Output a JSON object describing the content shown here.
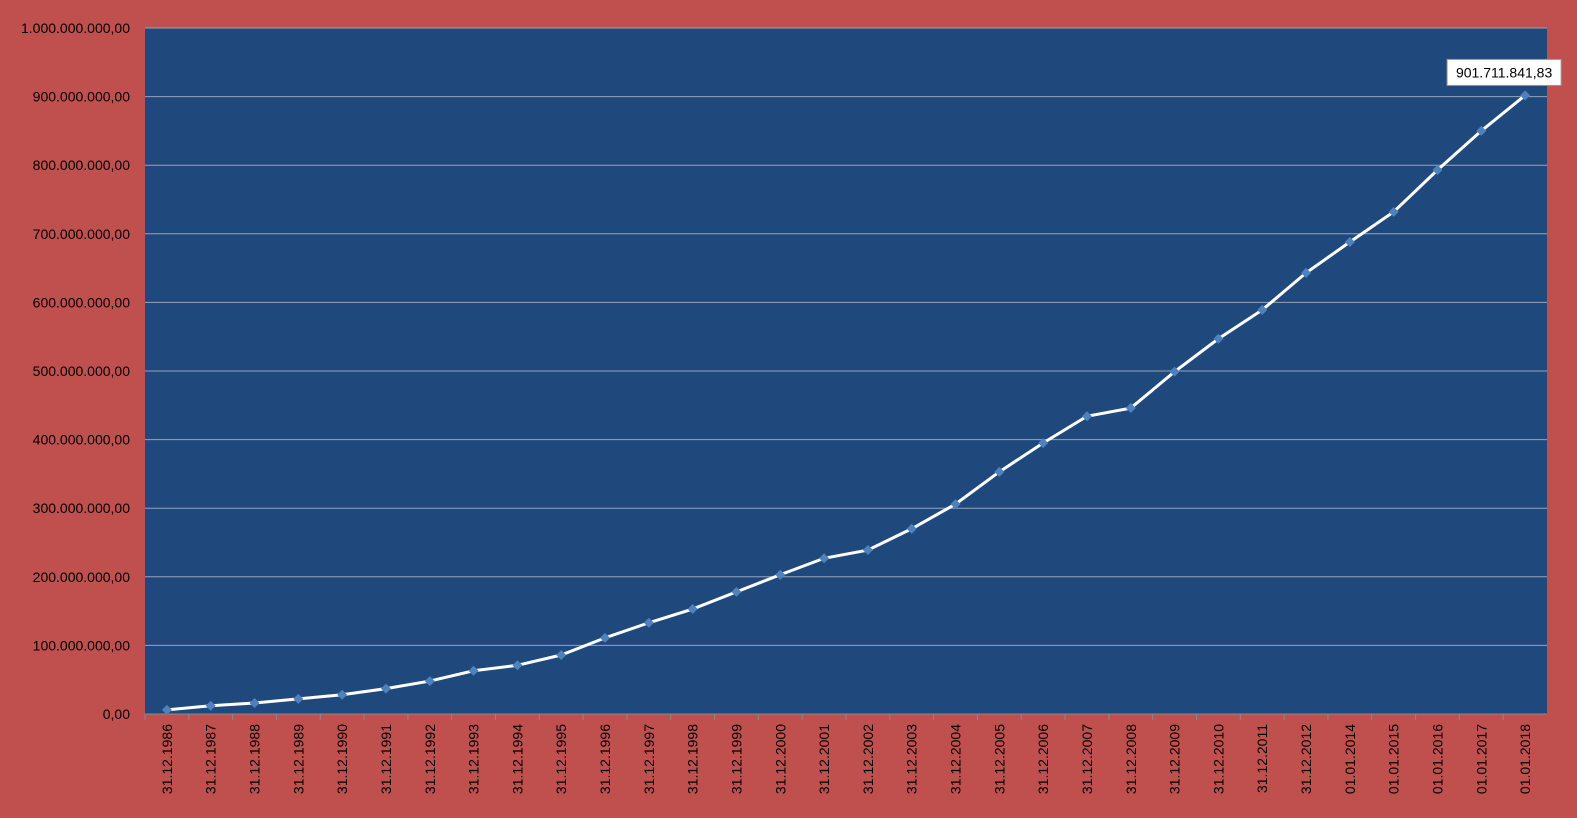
{
  "chart_data": {
    "type": "line",
    "categories": [
      "31.12.1986",
      "31.12.1987",
      "31.12.1988",
      "31.12.1989",
      "31.12.1990",
      "31.12.1991",
      "31.12.1992",
      "31.12.1993",
      "31.12.1994",
      "31.12.1995",
      "31.12.1996",
      "31.12.1997",
      "31.12.1998",
      "31.12.1999",
      "31.12.2000",
      "31.12.2001",
      "31.12.2002",
      "31.12.2003",
      "31.12.2004",
      "31.12.2005",
      "31.12.2006",
      "31.12.2007",
      "31.12.2008",
      "31.12.2009",
      "31.12.2010",
      "31.12.2011",
      "31.12.2012",
      "01.01.2014",
      "01.01.2015",
      "01.01.2016",
      "01.01.2017",
      "01.01.2018"
    ],
    "series": [
      {
        "color": "#ffffff",
        "marker_color": "#4f81bd",
        "values": [
          6000000,
          12000000,
          16000000,
          22000000,
          28000000,
          37000000,
          48000000,
          63000000,
          71000000,
          86000000,
          111000000,
          133000000,
          153000000,
          178000000,
          203000000,
          227000000,
          239000000,
          270000000,
          306000000,
          353000000,
          395000000,
          434000000,
          446000000,
          499000000,
          547000000,
          589000000,
          643000000,
          688000000,
          732000000,
          793000000,
          850000000,
          901711841.83
        ],
        "value_labels": [
          null,
          null,
          null,
          null,
          null,
          null,
          null,
          null,
          null,
          null,
          null,
          null,
          null,
          null,
          null,
          null,
          null,
          null,
          null,
          null,
          null,
          null,
          null,
          null,
          null,
          null,
          null,
          null,
          null,
          null,
          null,
          "901.711.841,83"
        ]
      }
    ],
    "ylim": [
      0,
      1000000000
    ],
    "yticks": [
      {
        "value": 0,
        "label": "0,00"
      },
      {
        "value": 100000000,
        "label": "100.000.000,00"
      },
      {
        "value": 200000000,
        "label": "200.000.000,00"
      },
      {
        "value": 300000000,
        "label": "300.000.000,00"
      },
      {
        "value": 400000000,
        "label": "400.000.000,00"
      },
      {
        "value": 500000000,
        "label": "500.000.000,00"
      },
      {
        "value": 600000000,
        "label": "600.000.000,00"
      },
      {
        "value": 700000000,
        "label": "700.000.000,00"
      },
      {
        "value": 800000000,
        "label": "800.000.000,00"
      },
      {
        "value": 900000000,
        "label": "900.000.000,00"
      },
      {
        "value": 1000000000,
        "label": "1.000.000.000,00"
      }
    ],
    "grid": true,
    "plot_background": "#1f497d",
    "background": "#c0504d"
  }
}
